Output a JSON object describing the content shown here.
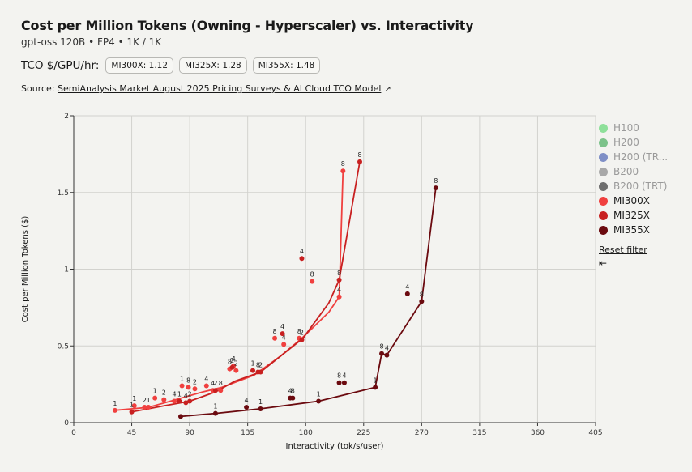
{
  "header": {
    "title": "Cost per Million Tokens (Owning - Hyperscaler) vs. Interactivity",
    "subtitle": "gpt-oss 120B • FP4 • 1K / 1K",
    "tco_label": "TCO $/GPU/hr:",
    "tco_pills": [
      "MI300X: 1.12",
      "MI325X: 1.28",
      "MI355X: 1.48"
    ],
    "source_prefix": "Source:",
    "source_link": "SemiAnalysis Market August 2025 Pricing Surveys & AI Cloud TCO Model"
  },
  "legend": {
    "items": [
      {
        "name": "H100",
        "color": "#8ee09a",
        "dim": true
      },
      {
        "name": "H200",
        "color": "#7cc28a",
        "dim": true
      },
      {
        "name": "H200 (TR...",
        "color": "#7f8fc6",
        "dim": true
      },
      {
        "name": "B200",
        "color": "#a8a8a8",
        "dim": true
      },
      {
        "name": "B200 (TRT)",
        "color": "#6e6e6e",
        "dim": true
      },
      {
        "name": "MI300X",
        "color": "#f0403f",
        "dim": false
      },
      {
        "name": "MI325X",
        "color": "#c82020",
        "dim": false
      },
      {
        "name": "MI355X",
        "color": "#6b0a0f",
        "dim": false
      }
    ],
    "reset_label": "Reset filter",
    "collapse_icon": "⇤"
  },
  "chart_data": {
    "type": "scatter",
    "xlabel": "Interactivity (tok/s/user)",
    "ylabel": "Cost per Million Tokens ($)",
    "xlim": [
      0,
      405
    ],
    "ylim": [
      0,
      2
    ],
    "xticks": [
      0,
      45,
      90,
      135,
      180,
      225,
      270,
      315,
      360,
      405
    ],
    "yticks": [
      0,
      0.5,
      1,
      1.5,
      2
    ],
    "ytick_labels": [
      "0",
      "0.5",
      "1",
      "1.5",
      "2"
    ],
    "grid": true,
    "legend_position": "right",
    "series": [
      {
        "name": "MI300X",
        "color": "#f0403f",
        "frontier": [
          [
            32,
            0.08
          ],
          [
            58,
            0.1
          ],
          [
            75,
            0.14
          ],
          [
            100,
            0.2
          ],
          [
            115,
            0.23
          ],
          [
            140,
            0.31
          ],
          [
            160,
            0.43
          ],
          [
            177,
            0.55
          ],
          [
            198,
            0.72
          ],
          [
            206,
            0.82
          ],
          [
            209,
            1.64
          ]
        ],
        "points": [
          {
            "x": 32,
            "y": 0.08,
            "label": "1"
          },
          {
            "x": 47,
            "y": 0.11,
            "label": "1"
          },
          {
            "x": 55,
            "y": 0.1,
            "label": "2"
          },
          {
            "x": 58,
            "y": 0.1,
            "label": "1"
          },
          {
            "x": 63,
            "y": 0.16,
            "label": "1"
          },
          {
            "x": 70,
            "y": 0.15,
            "label": "2"
          },
          {
            "x": 78,
            "y": 0.14,
            "label": "4"
          },
          {
            "x": 84,
            "y": 0.24,
            "label": "1"
          },
          {
            "x": 89,
            "y": 0.23,
            "label": "8"
          },
          {
            "x": 94,
            "y": 0.22,
            "label": "2"
          },
          {
            "x": 103,
            "y": 0.24,
            "label": "4"
          },
          {
            "x": 108,
            "y": 0.21,
            "label": "4"
          },
          {
            "x": 114,
            "y": 0.21,
            "label": "8"
          },
          {
            "x": 121,
            "y": 0.35,
            "label": "8"
          },
          {
            "x": 124,
            "y": 0.37,
            "label": "4"
          },
          {
            "x": 126,
            "y": 0.34,
            "label": "2"
          },
          {
            "x": 156,
            "y": 0.55,
            "label": "8"
          },
          {
            "x": 163,
            "y": 0.51,
            "label": "4"
          },
          {
            "x": 175,
            "y": 0.55,
            "label": "8"
          },
          {
            "x": 185,
            "y": 0.92,
            "label": "8"
          },
          {
            "x": 206,
            "y": 0.82,
            "label": "4"
          },
          {
            "x": 209,
            "y": 1.64,
            "label": "8"
          }
        ]
      },
      {
        "name": "MI325X",
        "color": "#c82020",
        "frontier": [
          [
            45,
            0.07
          ],
          [
            70,
            0.11
          ],
          [
            90,
            0.14
          ],
          [
            110,
            0.2
          ],
          [
            125,
            0.27
          ],
          [
            145,
            0.33
          ],
          [
            160,
            0.43
          ],
          [
            178,
            0.55
          ],
          [
            198,
            0.78
          ],
          [
            206,
            0.93
          ],
          [
            222,
            1.7
          ]
        ],
        "points": [
          {
            "x": 45,
            "y": 0.07,
            "label": "1"
          },
          {
            "x": 82,
            "y": 0.14,
            "label": "1"
          },
          {
            "x": 87,
            "y": 0.13,
            "label": "4"
          },
          {
            "x": 90,
            "y": 0.14,
            "label": "2"
          },
          {
            "x": 110,
            "y": 0.21,
            "label": "2"
          },
          {
            "x": 123,
            "y": 0.36,
            "label": "2"
          },
          {
            "x": 139,
            "y": 0.34,
            "label": "1"
          },
          {
            "x": 143,
            "y": 0.33,
            "label": "8"
          },
          {
            "x": 145,
            "y": 0.33,
            "label": "2"
          },
          {
            "x": 162,
            "y": 0.58,
            "label": "4"
          },
          {
            "x": 177,
            "y": 0.54,
            "label": "2"
          },
          {
            "x": 177,
            "y": 1.07,
            "label": "4"
          },
          {
            "x": 206,
            "y": 0.93,
            "label": "8"
          },
          {
            "x": 222,
            "y": 1.7,
            "label": "8"
          }
        ]
      },
      {
        "name": "MI355X",
        "color": "#6b0a0f",
        "frontier": [
          [
            83,
            0.04
          ],
          [
            110,
            0.06
          ],
          [
            145,
            0.09
          ],
          [
            190,
            0.14
          ],
          [
            234,
            0.23
          ],
          [
            239,
            0.45
          ],
          [
            243,
            0.44
          ],
          [
            270,
            0.79
          ],
          [
            281,
            1.53
          ]
        ],
        "points": [
          {
            "x": 83,
            "y": 0.04,
            "label": ""
          },
          {
            "x": 110,
            "y": 0.06,
            "label": "1"
          },
          {
            "x": 134,
            "y": 0.1,
            "label": "4"
          },
          {
            "x": 145,
            "y": 0.09,
            "label": "1"
          },
          {
            "x": 168,
            "y": 0.16,
            "label": "4"
          },
          {
            "x": 170,
            "y": 0.16,
            "label": "8"
          },
          {
            "x": 190,
            "y": 0.14,
            "label": "1"
          },
          {
            "x": 206,
            "y": 0.26,
            "label": "8"
          },
          {
            "x": 210,
            "y": 0.26,
            "label": "4"
          },
          {
            "x": 234,
            "y": 0.23,
            "label": "1"
          },
          {
            "x": 239,
            "y": 0.45,
            "label": "8"
          },
          {
            "x": 243,
            "y": 0.44,
            "label": "4"
          },
          {
            "x": 259,
            "y": 0.84,
            "label": "4"
          },
          {
            "x": 270,
            "y": 0.79,
            "label": "8"
          },
          {
            "x": 281,
            "y": 1.53,
            "label": "8"
          }
        ]
      }
    ]
  }
}
